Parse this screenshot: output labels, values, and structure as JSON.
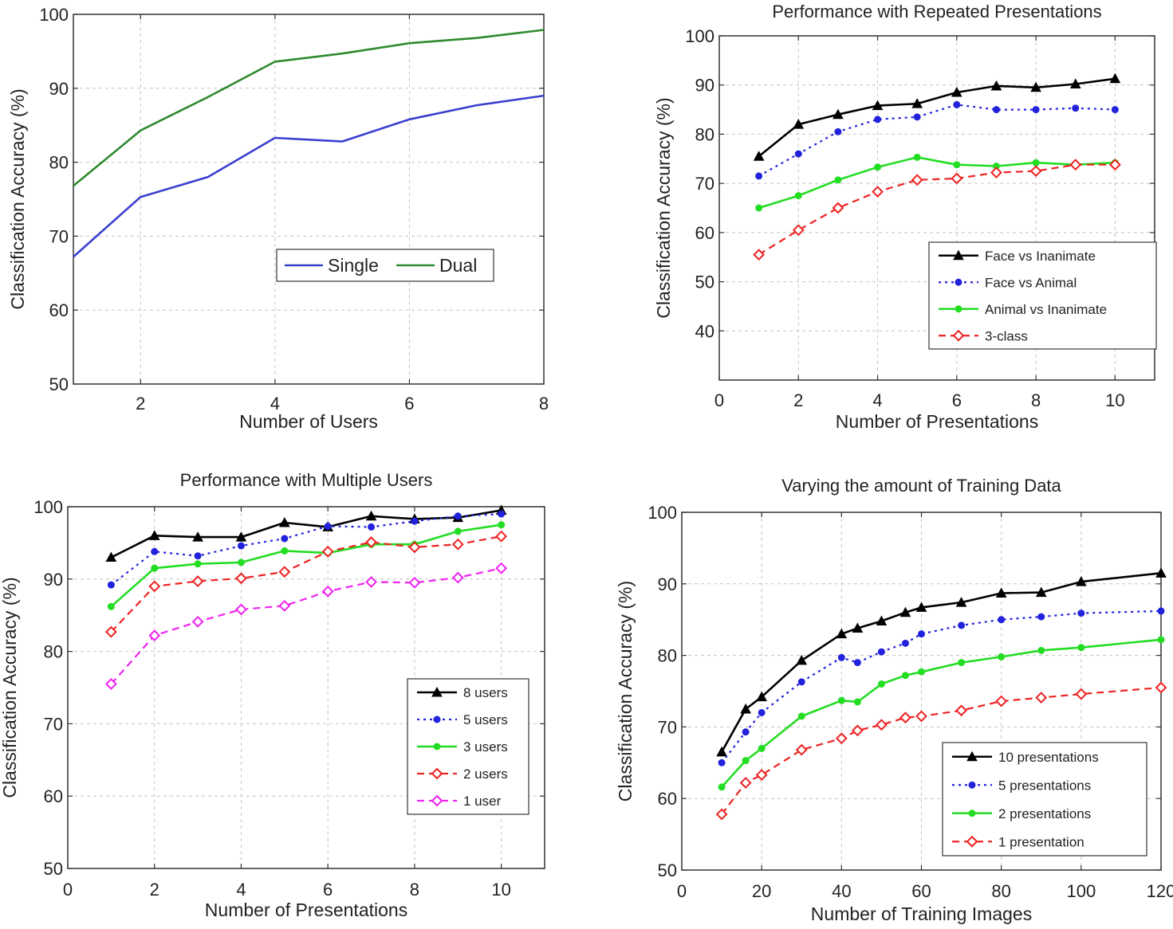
{
  "chart_data": [
    {
      "id": "users",
      "type": "line",
      "title": "",
      "xlabel": "Number of Users",
      "ylabel": "Classification Accuracy (%)",
      "xlim": [
        1,
        8
      ],
      "ylim": [
        50,
        100
      ],
      "xticks": [
        2,
        4,
        6,
        8
      ],
      "yticks": [
        50,
        60,
        70,
        80,
        90,
        100
      ],
      "legend_position": "middle-right",
      "legend_layout": "horizontal",
      "grid": true,
      "series": [
        {
          "name": "Single",
          "color": "#3b3fd0",
          "style": "solid",
          "marker": "none",
          "x": [
            1,
            2,
            3,
            4,
            5,
            6,
            7,
            8
          ],
          "values": [
            67.2,
            75.3,
            78.0,
            83.3,
            82.8,
            85.8,
            87.7,
            89.0
          ]
        },
        {
          "name": "Dual",
          "color": "#2f8a2f",
          "style": "solid",
          "marker": "none",
          "x": [
            1,
            2,
            3,
            4,
            5,
            6,
            7,
            8
          ],
          "values": [
            76.8,
            84.3,
            88.8,
            93.6,
            94.7,
            96.1,
            96.8,
            97.9
          ]
        }
      ]
    },
    {
      "id": "repeated",
      "type": "line",
      "title": "Performance with Repeated Presentations",
      "xlabel": "Number of Presentations",
      "ylabel": "Classification Accuracy (%)",
      "xlim": [
        0,
        11
      ],
      "ylim": [
        30,
        100
      ],
      "xticks": [
        0,
        2,
        4,
        6,
        8,
        10
      ],
      "yticks": [
        40,
        50,
        60,
        70,
        80,
        90,
        100
      ],
      "legend_position": "bottom-right",
      "legend_layout": "vertical",
      "grid": true,
      "series": [
        {
          "name": "Face vs Inanimate",
          "color": "#000000",
          "style": "solid",
          "marker": "triangle",
          "x": [
            1,
            2,
            3,
            4,
            5,
            6,
            7,
            8,
            9,
            10
          ],
          "values": [
            75.5,
            82,
            84,
            85.8,
            86.2,
            88.5,
            89.8,
            89.5,
            90.2,
            91.3
          ]
        },
        {
          "name": "Face vs Animal",
          "color": "#2222dd",
          "style": "dotted",
          "marker": "dot",
          "x": [
            1,
            2,
            3,
            4,
            5,
            6,
            7,
            8,
            9,
            10
          ],
          "values": [
            71.5,
            76,
            80.5,
            83,
            83.5,
            86,
            85,
            85,
            85.3,
            85
          ]
        },
        {
          "name": "Animal vs Inanimate",
          "color": "#22dd22",
          "style": "solid",
          "marker": "dot",
          "x": [
            1,
            2,
            3,
            4,
            5,
            6,
            7,
            8,
            9,
            10
          ],
          "values": [
            65,
            67.5,
            70.7,
            73.3,
            75.3,
            73.8,
            73.5,
            74.2,
            73.8,
            74.2
          ]
        },
        {
          "name": "3-class",
          "color": "#ee2222",
          "style": "dashed",
          "marker": "diamond",
          "x": [
            1,
            2,
            3,
            4,
            5,
            6,
            7,
            8,
            9,
            10
          ],
          "values": [
            55.5,
            60.5,
            65,
            68.3,
            70.7,
            71,
            72.2,
            72.5,
            73.8,
            73.8
          ]
        }
      ]
    },
    {
      "id": "multiuser",
      "type": "line",
      "title": "Performance with Multiple Users",
      "xlabel": "Number of Presentations",
      "ylabel": "Classification Accuracy (%)",
      "xlim": [
        0,
        11
      ],
      "ylim": [
        50,
        100
      ],
      "xticks": [
        0,
        2,
        4,
        6,
        8,
        10
      ],
      "yticks": [
        50,
        60,
        70,
        80,
        90,
        100
      ],
      "legend_position": "bottom-right",
      "legend_layout": "vertical",
      "grid": true,
      "series": [
        {
          "name": "8 users",
          "color": "#000000",
          "style": "solid",
          "marker": "triangle",
          "x": [
            1,
            2,
            3,
            4,
            5,
            6,
            7,
            8,
            9,
            10
          ],
          "values": [
            93,
            96,
            95.8,
            95.8,
            97.8,
            97.2,
            98.7,
            98.3,
            98.5,
            99.5
          ]
        },
        {
          "name": "5 users",
          "color": "#2222dd",
          "style": "dotted",
          "marker": "dot",
          "x": [
            1,
            2,
            3,
            4,
            5,
            6,
            7,
            8,
            9,
            10
          ],
          "values": [
            89.2,
            93.8,
            93.2,
            94.6,
            95.6,
            97.3,
            97.2,
            98,
            98.7,
            99
          ]
        },
        {
          "name": "3 users",
          "color": "#22dd22",
          "style": "solid",
          "marker": "dot",
          "x": [
            1,
            2,
            3,
            4,
            5,
            6,
            7,
            8,
            9,
            10
          ],
          "values": [
            86.2,
            91.5,
            92.1,
            92.3,
            93.9,
            93.6,
            94.8,
            94.8,
            96.6,
            97.5
          ]
        },
        {
          "name": "2 users",
          "color": "#ee2222",
          "style": "dashed",
          "marker": "diamond",
          "x": [
            1,
            2,
            3,
            4,
            5,
            6,
            7,
            8,
            9,
            10
          ],
          "values": [
            82.7,
            89,
            89.7,
            90.1,
            91,
            93.8,
            95.1,
            94.4,
            94.8,
            95.9
          ]
        },
        {
          "name": "1 user",
          "color": "#ee22ee",
          "style": "dashed",
          "marker": "diamond",
          "x": [
            1,
            2,
            3,
            4,
            5,
            6,
            7,
            8,
            9,
            10
          ],
          "values": [
            75.5,
            82.2,
            84.1,
            85.8,
            86.3,
            88.3,
            89.6,
            89.5,
            90.2,
            91.5
          ]
        }
      ]
    },
    {
      "id": "training",
      "type": "line",
      "title": "Varying the amount of Training Data",
      "xlabel": "Number of Training Images",
      "ylabel": "Classification Accuracy (%)",
      "xlim": [
        0,
        120
      ],
      "ylim": [
        50,
        100
      ],
      "xticks": [
        0,
        20,
        40,
        60,
        80,
        100,
        120
      ],
      "yticks": [
        50,
        60,
        70,
        80,
        90,
        100
      ],
      "legend_position": "bottom-right",
      "legend_layout": "vertical",
      "grid": true,
      "series": [
        {
          "name": "10 presentations",
          "color": "#000000",
          "style": "solid",
          "marker": "triangle",
          "x": [
            10,
            16,
            20,
            30,
            40,
            44,
            50,
            56,
            60,
            70,
            80,
            90,
            100,
            120
          ],
          "values": [
            66.5,
            72.5,
            74.2,
            79.3,
            83,
            83.8,
            84.8,
            86,
            86.7,
            87.4,
            88.7,
            88.8,
            90.3,
            91.5
          ]
        },
        {
          "name": "5 presentations",
          "color": "#2222dd",
          "style": "dotted",
          "marker": "dot",
          "x": [
            10,
            16,
            20,
            30,
            40,
            44,
            50,
            56,
            60,
            70,
            80,
            90,
            100,
            120
          ],
          "values": [
            65,
            69.3,
            72,
            76.3,
            79.7,
            79,
            80.5,
            81.7,
            83,
            84.2,
            85,
            85.4,
            85.9,
            86.2
          ]
        },
        {
          "name": "2 presentations",
          "color": "#22dd22",
          "style": "solid",
          "marker": "dot",
          "x": [
            10,
            16,
            20,
            30,
            40,
            44,
            50,
            56,
            60,
            70,
            80,
            90,
            100,
            120
          ],
          "values": [
            61.6,
            65.3,
            67,
            71.5,
            73.7,
            73.5,
            76,
            77.2,
            77.7,
            79,
            79.8,
            80.7,
            81.1,
            82.2
          ]
        },
        {
          "name": "1 presentation",
          "color": "#ee2222",
          "style": "dashed",
          "marker": "diamond",
          "x": [
            10,
            16,
            20,
            30,
            40,
            44,
            50,
            56,
            60,
            70,
            80,
            90,
            100,
            120
          ],
          "values": [
            57.8,
            62.2,
            63.3,
            66.8,
            68.4,
            69.5,
            70.3,
            71.3,
            71.5,
            72.3,
            73.6,
            74.1,
            74.6,
            75.5
          ]
        }
      ]
    }
  ]
}
